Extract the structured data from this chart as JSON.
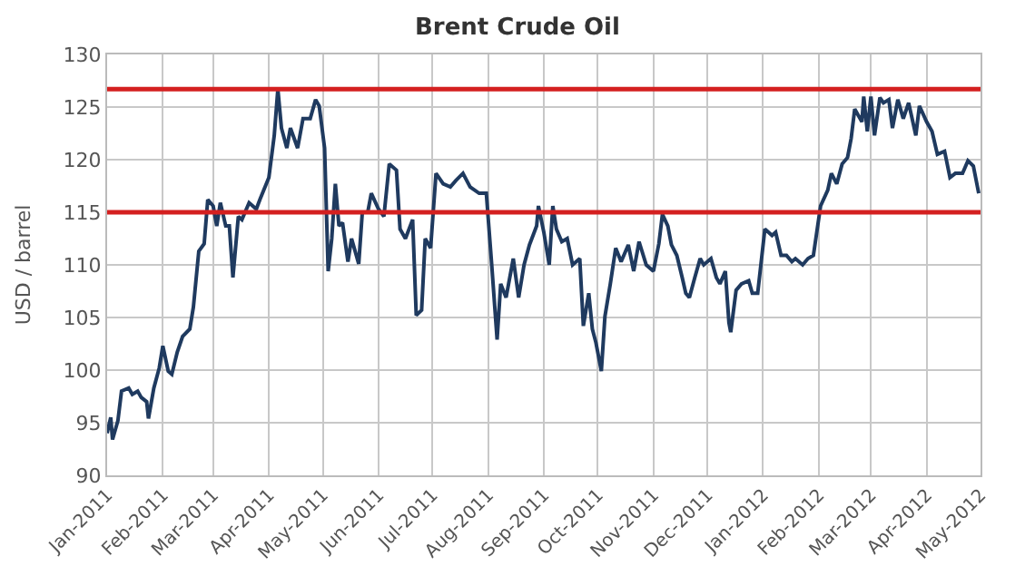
{
  "chart_data": {
    "type": "line",
    "title": "Brent Crude Oil",
    "ylabel": "USD / barrel",
    "x": [
      "2011-01-01",
      "2011-01-03",
      "2011-01-04",
      "2011-01-07",
      "2011-01-09",
      "2011-01-13",
      "2011-01-15",
      "2011-01-18",
      "2011-01-20",
      "2011-01-23",
      "2011-01-24",
      "2011-01-27",
      "2011-01-30",
      "2011-02-01",
      "2011-02-04",
      "2011-02-06",
      "2011-02-09",
      "2011-02-12",
      "2011-02-16",
      "2011-02-18",
      "2011-02-21",
      "2011-02-24",
      "2011-02-26",
      "2011-03-01",
      "2011-03-03",
      "2011-03-05",
      "2011-03-08",
      "2011-03-10",
      "2011-03-12",
      "2011-03-15",
      "2011-03-17",
      "2011-03-21",
      "2011-03-25",
      "2011-03-27",
      "2011-04-01",
      "2011-04-04",
      "2011-04-06",
      "2011-04-08",
      "2011-04-11",
      "2011-04-13",
      "2011-04-17",
      "2011-04-20",
      "2011-04-24",
      "2011-04-27",
      "2011-04-29",
      "2011-05-02",
      "2011-05-04",
      "2011-05-06",
      "2011-05-08",
      "2011-05-10",
      "2011-05-12",
      "2011-05-15",
      "2011-05-17",
      "2011-05-21",
      "2011-05-23",
      "2011-05-26",
      "2011-05-28",
      "2011-06-01",
      "2011-06-04",
      "2011-06-07",
      "2011-06-11",
      "2011-06-13",
      "2011-06-16",
      "2011-06-20",
      "2011-06-22",
      "2011-06-25",
      "2011-06-27",
      "2011-06-30",
      "2011-07-03",
      "2011-07-07",
      "2011-07-11",
      "2011-07-14",
      "2011-07-18",
      "2011-07-22",
      "2011-07-27",
      "2011-07-31",
      "2011-08-03",
      "2011-08-06",
      "2011-08-08",
      "2011-08-11",
      "2011-08-15",
      "2011-08-18",
      "2011-08-21",
      "2011-08-24",
      "2011-08-28",
      "2011-08-29",
      "2011-09-01",
      "2011-09-04",
      "2011-09-06",
      "2011-09-08",
      "2011-09-11",
      "2011-09-14",
      "2011-09-17",
      "2011-09-21",
      "2011-09-23",
      "2011-09-26",
      "2011-09-28",
      "2011-09-30",
      "2011-10-03",
      "2011-10-05",
      "2011-10-08",
      "2011-10-11",
      "2011-10-14",
      "2011-10-18",
      "2011-10-21",
      "2011-10-24",
      "2011-10-28",
      "2011-11-01",
      "2011-11-04",
      "2011-11-06",
      "2011-11-09",
      "2011-11-11",
      "2011-11-14",
      "2011-11-17",
      "2011-11-19",
      "2011-11-21",
      "2011-11-24",
      "2011-11-27",
      "2011-11-29",
      "2011-12-03",
      "2011-12-06",
      "2011-12-08",
      "2011-12-11",
      "2011-12-13",
      "2011-12-14",
      "2011-12-17",
      "2011-12-20",
      "2011-12-24",
      "2011-12-26",
      "2011-12-29",
      "2012-01-02",
      "2012-01-06",
      "2012-01-08",
      "2012-01-11",
      "2012-01-14",
      "2012-01-17",
      "2012-01-19",
      "2012-01-23",
      "2012-01-26",
      "2012-01-29",
      "2012-02-02",
      "2012-02-06",
      "2012-02-08",
      "2012-02-11",
      "2012-02-14",
      "2012-02-17",
      "2012-02-19",
      "2012-02-21",
      "2012-02-25",
      "2012-02-26",
      "2012-02-28",
      "2012-03-01",
      "2012-03-03",
      "2012-03-06",
      "2012-03-08",
      "2012-03-11",
      "2012-03-13",
      "2012-03-16",
      "2012-03-19",
      "2012-03-22",
      "2012-03-26",
      "2012-03-28",
      "2012-04-01",
      "2012-04-04",
      "2012-04-07",
      "2012-04-11",
      "2012-04-14",
      "2012-04-17",
      "2012-04-21",
      "2012-04-24",
      "2012-04-27",
      "2012-04-30"
    ],
    "values": [
      94.0,
      95.5,
      93.4,
      95.2,
      98.0,
      98.3,
      97.7,
      98.0,
      97.4,
      97.0,
      95.4,
      98.3,
      100.2,
      102.3,
      99.9,
      99.6,
      101.7,
      103.2,
      103.9,
      106.0,
      111.3,
      112.0,
      116.2,
      115.6,
      113.7,
      115.9,
      113.7,
      113.7,
      108.8,
      114.6,
      114.3,
      115.9,
      115.3,
      116.2,
      118.3,
      122.3,
      126.7,
      123.0,
      121.1,
      123.0,
      121.1,
      123.9,
      123.9,
      125.7,
      125.1,
      121.1,
      109.4,
      112.5,
      117.7,
      113.7,
      114.0,
      110.3,
      112.5,
      110.1,
      115.0,
      115.0,
      116.8,
      115.3,
      114.6,
      119.6,
      119.0,
      113.4,
      112.5,
      114.3,
      105.2,
      105.7,
      112.5,
      111.6,
      118.7,
      117.7,
      117.4,
      118.0,
      118.7,
      117.4,
      116.8,
      116.8,
      110.0,
      102.9,
      108.2,
      106.9,
      110.6,
      106.9,
      110.0,
      111.9,
      113.7,
      115.6,
      113.1,
      110.0,
      115.6,
      113.4,
      112.2,
      112.5,
      110.0,
      110.6,
      104.2,
      107.3,
      103.9,
      102.6,
      99.9,
      105.1,
      108.2,
      111.6,
      110.3,
      111.9,
      109.4,
      112.2,
      110.0,
      109.4,
      112.0,
      114.8,
      113.7,
      111.9,
      110.9,
      108.8,
      107.3,
      106.9,
      108.8,
      110.6,
      110.0,
      110.6,
      108.8,
      108.2,
      109.4,
      104.5,
      103.6,
      107.6,
      108.2,
      108.5,
      107.3,
      107.3,
      113.4,
      112.8,
      113.1,
      110.9,
      110.9,
      110.3,
      110.6,
      110.0,
      110.6,
      110.9,
      115.6,
      117.1,
      118.7,
      117.7,
      119.6,
      120.2,
      122.0,
      124.8,
      123.6,
      126.0,
      122.7,
      126.0,
      122.3,
      125.9,
      125.4,
      125.7,
      123.0,
      125.7,
      123.9,
      125.4,
      122.3,
      125.1,
      123.6,
      122.7,
      120.5,
      120.8,
      118.3,
      118.7,
      118.7,
      119.9,
      119.4,
      116.8
    ],
    "color": "#1f3a5f",
    "line_style": "solid",
    "marker": "none",
    "xlim": [
      "2011-01-01",
      "2012-05-01"
    ],
    "xticks": [
      {
        "value": "2011-01-01",
        "label": "Jan-2011"
      },
      {
        "value": "2011-02-01",
        "label": "Feb-2011"
      },
      {
        "value": "2011-03-01",
        "label": "Mar-2011"
      },
      {
        "value": "2011-04-01",
        "label": "Apr-2011"
      },
      {
        "value": "2011-05-01",
        "label": "May-2011"
      },
      {
        "value": "2011-06-01",
        "label": "Jun-2011"
      },
      {
        "value": "2011-07-01",
        "label": "Jul-2011"
      },
      {
        "value": "2011-08-01",
        "label": "Aug-2011"
      },
      {
        "value": "2011-09-01",
        "label": "Sep-2011"
      },
      {
        "value": "2011-10-01",
        "label": "Oct-2011"
      },
      {
        "value": "2011-11-01",
        "label": "Nov-2011"
      },
      {
        "value": "2011-12-01",
        "label": "Dec-2011"
      },
      {
        "value": "2012-01-01",
        "label": "Jan-2012"
      },
      {
        "value": "2012-02-01",
        "label": "Feb-2012"
      },
      {
        "value": "2012-03-01",
        "label": "Mar-2012"
      },
      {
        "value": "2012-04-01",
        "label": "Apr-2012"
      },
      {
        "value": "2012-05-01",
        "label": "May-2012"
      }
    ],
    "ylim": [
      90,
      130
    ],
    "yticks": [
      90,
      95,
      100,
      105,
      110,
      115,
      120,
      125,
      130
    ],
    "grid": true,
    "ref_lines": [
      {
        "axis": "y",
        "value": 126.7,
        "color": "#d42020"
      },
      {
        "axis": "y",
        "value": 115,
        "color": "#d42020"
      }
    ]
  }
}
